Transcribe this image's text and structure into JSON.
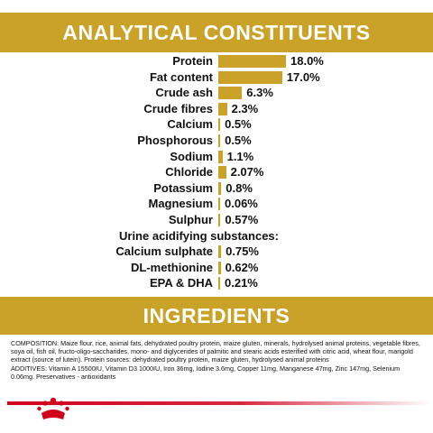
{
  "section1_title": "ANALYTICAL CONSTITUENTS",
  "section2_title": "INGREDIENTS",
  "accent_color": "#c9a227",
  "chart_data": {
    "type": "bar",
    "orientation": "horizontal",
    "title": "",
    "xlabel": "",
    "ylabel": "",
    "xlim": [
      0,
      18
    ],
    "categories": [
      "Protein",
      "Fat content",
      "Crude ash",
      "Crude fibres",
      "Calcium",
      "Phosphorous",
      "Sodium",
      "Chloride",
      "Potassium",
      "Magnesium",
      "Sulphur",
      "Calcium sulphate",
      "DL-methionine",
      "EPA & DHA"
    ],
    "values": [
      18.0,
      17.0,
      6.3,
      2.3,
      0.5,
      0.5,
      1.1,
      2.07,
      0.8,
      0.06,
      0.57,
      0.75,
      0.62,
      0.21
    ],
    "value_labels": [
      "18.0%",
      "17.0%",
      "6.3%",
      "2.3%",
      "0.5%",
      "0.5%",
      "1.1%",
      "2.07%",
      "0.8%",
      "0.06%",
      "0.57%",
      "0.75%",
      "0.62%",
      "0.21%"
    ],
    "group_label": "Urine acidifying substances:",
    "group_starts_before_index": 11
  },
  "composition": {
    "composition_text": "COMPOSITION: Maize flour, rice, animal fats, dehydrated poultry protein, maize gluten, minerals, hydrolysed animal proteins, vegetable fibres, soya oil, fish oil, fructo-oligo-saccharides, mono- and diglycerides of palmitic and stearic acids esterified with citric acid, wheat flour, marigold extract (source of lutein). Protein sources: dehydrated poultry protein, maize gluten, hydrolysed animal proteins",
    "additives_text": "ADDITIVES: Vitamin A 15500IU, Vitamin D3 1000IU, Iron 36mg, Iodine 3.6mg, Copper 11mg, Manganese 47mg, Zinc 147mg, Selenium 0.06mg. Preservatives - antioxidants"
  },
  "logo_icon": "royal-canin-crown-icon",
  "brand_line_color": "#d0021b"
}
